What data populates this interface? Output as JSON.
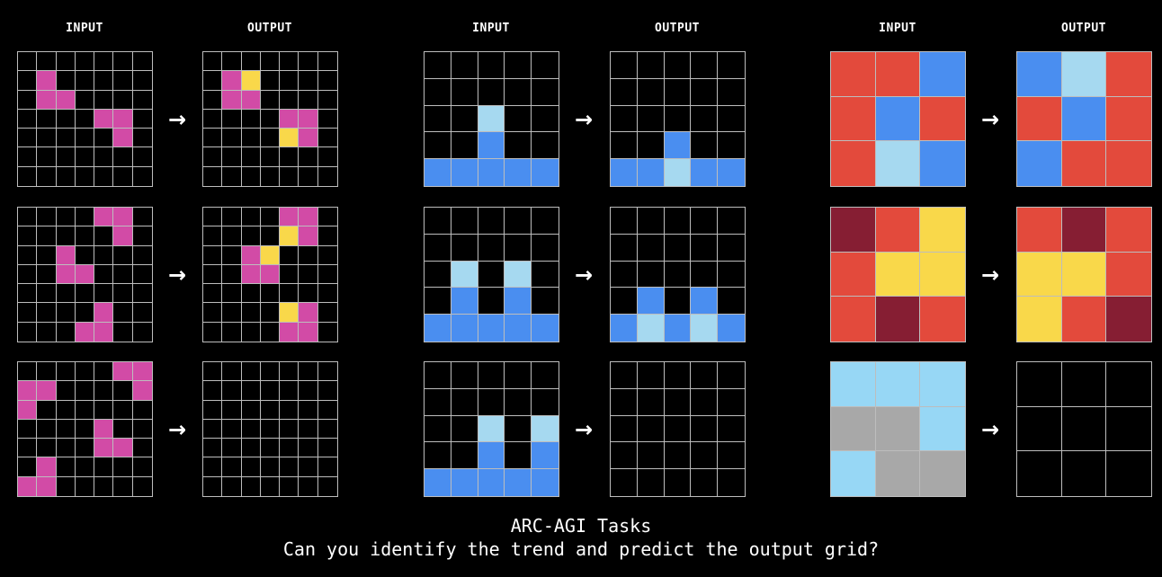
{
  "headers": [
    {
      "id": "t1-input",
      "label": "INPUT"
    },
    {
      "id": "t1-output",
      "label": "OUTPUT"
    },
    {
      "id": "t2-input",
      "label": "INPUT"
    },
    {
      "id": "t2-output",
      "label": "OUTPUT"
    },
    {
      "id": "t3-input",
      "label": "INPUT"
    },
    {
      "id": "t3-output",
      "label": "OUTPUT"
    }
  ],
  "arrow_glyph": "→",
  "caption": {
    "title": "ARC-AGI Tasks",
    "question": "Can you identify the trend and predict the output grid?"
  },
  "palette": {
    "0": "#000000",
    "M": "#d24ba6",
    "Y": "#f9d84a",
    "B": "#4a8ef0",
    "L": "#a6d9f0",
    "R": "#e34a3c",
    "D": "#861e33",
    "S": "#97d7f5",
    "G": "#a8a8a8"
  },
  "tasks": [
    {
      "name": "task-1",
      "pairs": [
        {
          "input": [
            "0000000",
            "0M00000",
            "0MM0000",
            "0000MM0",
            "00000M0",
            "0000000",
            "0000000"
          ],
          "output": [
            "0000000",
            "0MY0000",
            "0MM0000",
            "0000MM0",
            "0000YM0",
            "0000000",
            "0000000"
          ]
        },
        {
          "input": [
            "0000MM0",
            "00000M0",
            "00M0000",
            "00MM000",
            "0000000",
            "0000M00",
            "000MM00"
          ],
          "output": [
            "0000MM0",
            "0000YM0",
            "00MY000",
            "00MM000",
            "0000000",
            "0000YM0",
            "0000MM0"
          ]
        },
        {
          "input": [
            "00000MM",
            "MM0000M",
            "M000000",
            "0000M00",
            "0000MM0",
            "0M00000",
            "MM00000"
          ],
          "output": [
            "0000000",
            "0000000",
            "0000000",
            "0000000",
            "0000000",
            "0000000",
            "0000000"
          ]
        }
      ]
    },
    {
      "name": "task-2",
      "pairs": [
        {
          "input": [
            "00000",
            "00000",
            "00L00",
            "00B00",
            "BBBBB"
          ],
          "output": [
            "00000",
            "00000",
            "00000",
            "00B00",
            "BBLBB"
          ]
        },
        {
          "input": [
            "00000",
            "00000",
            "0L0L0",
            "0B0B0",
            "BBBBB"
          ],
          "output": [
            "00000",
            "00000",
            "00000",
            "0B0B0",
            "BLBLB"
          ]
        },
        {
          "input": [
            "00000",
            "00000",
            "00L0L",
            "00B0B",
            "BBBBB"
          ],
          "output": [
            "00000",
            "00000",
            "00000",
            "00000",
            "00000"
          ]
        }
      ]
    },
    {
      "name": "task-3",
      "pairs": [
        {
          "input": [
            "RRB",
            "RBR",
            "RLB"
          ],
          "output": [
            "BLR",
            "RBR",
            "BRR"
          ]
        },
        {
          "input": [
            "DRY",
            "RYY",
            "RDR"
          ],
          "output": [
            "RDR",
            "YYR",
            "YRD"
          ]
        },
        {
          "input": [
            "SSS",
            "GGS",
            "SGG"
          ],
          "output": [
            "000",
            "000",
            "000"
          ]
        }
      ]
    }
  ]
}
